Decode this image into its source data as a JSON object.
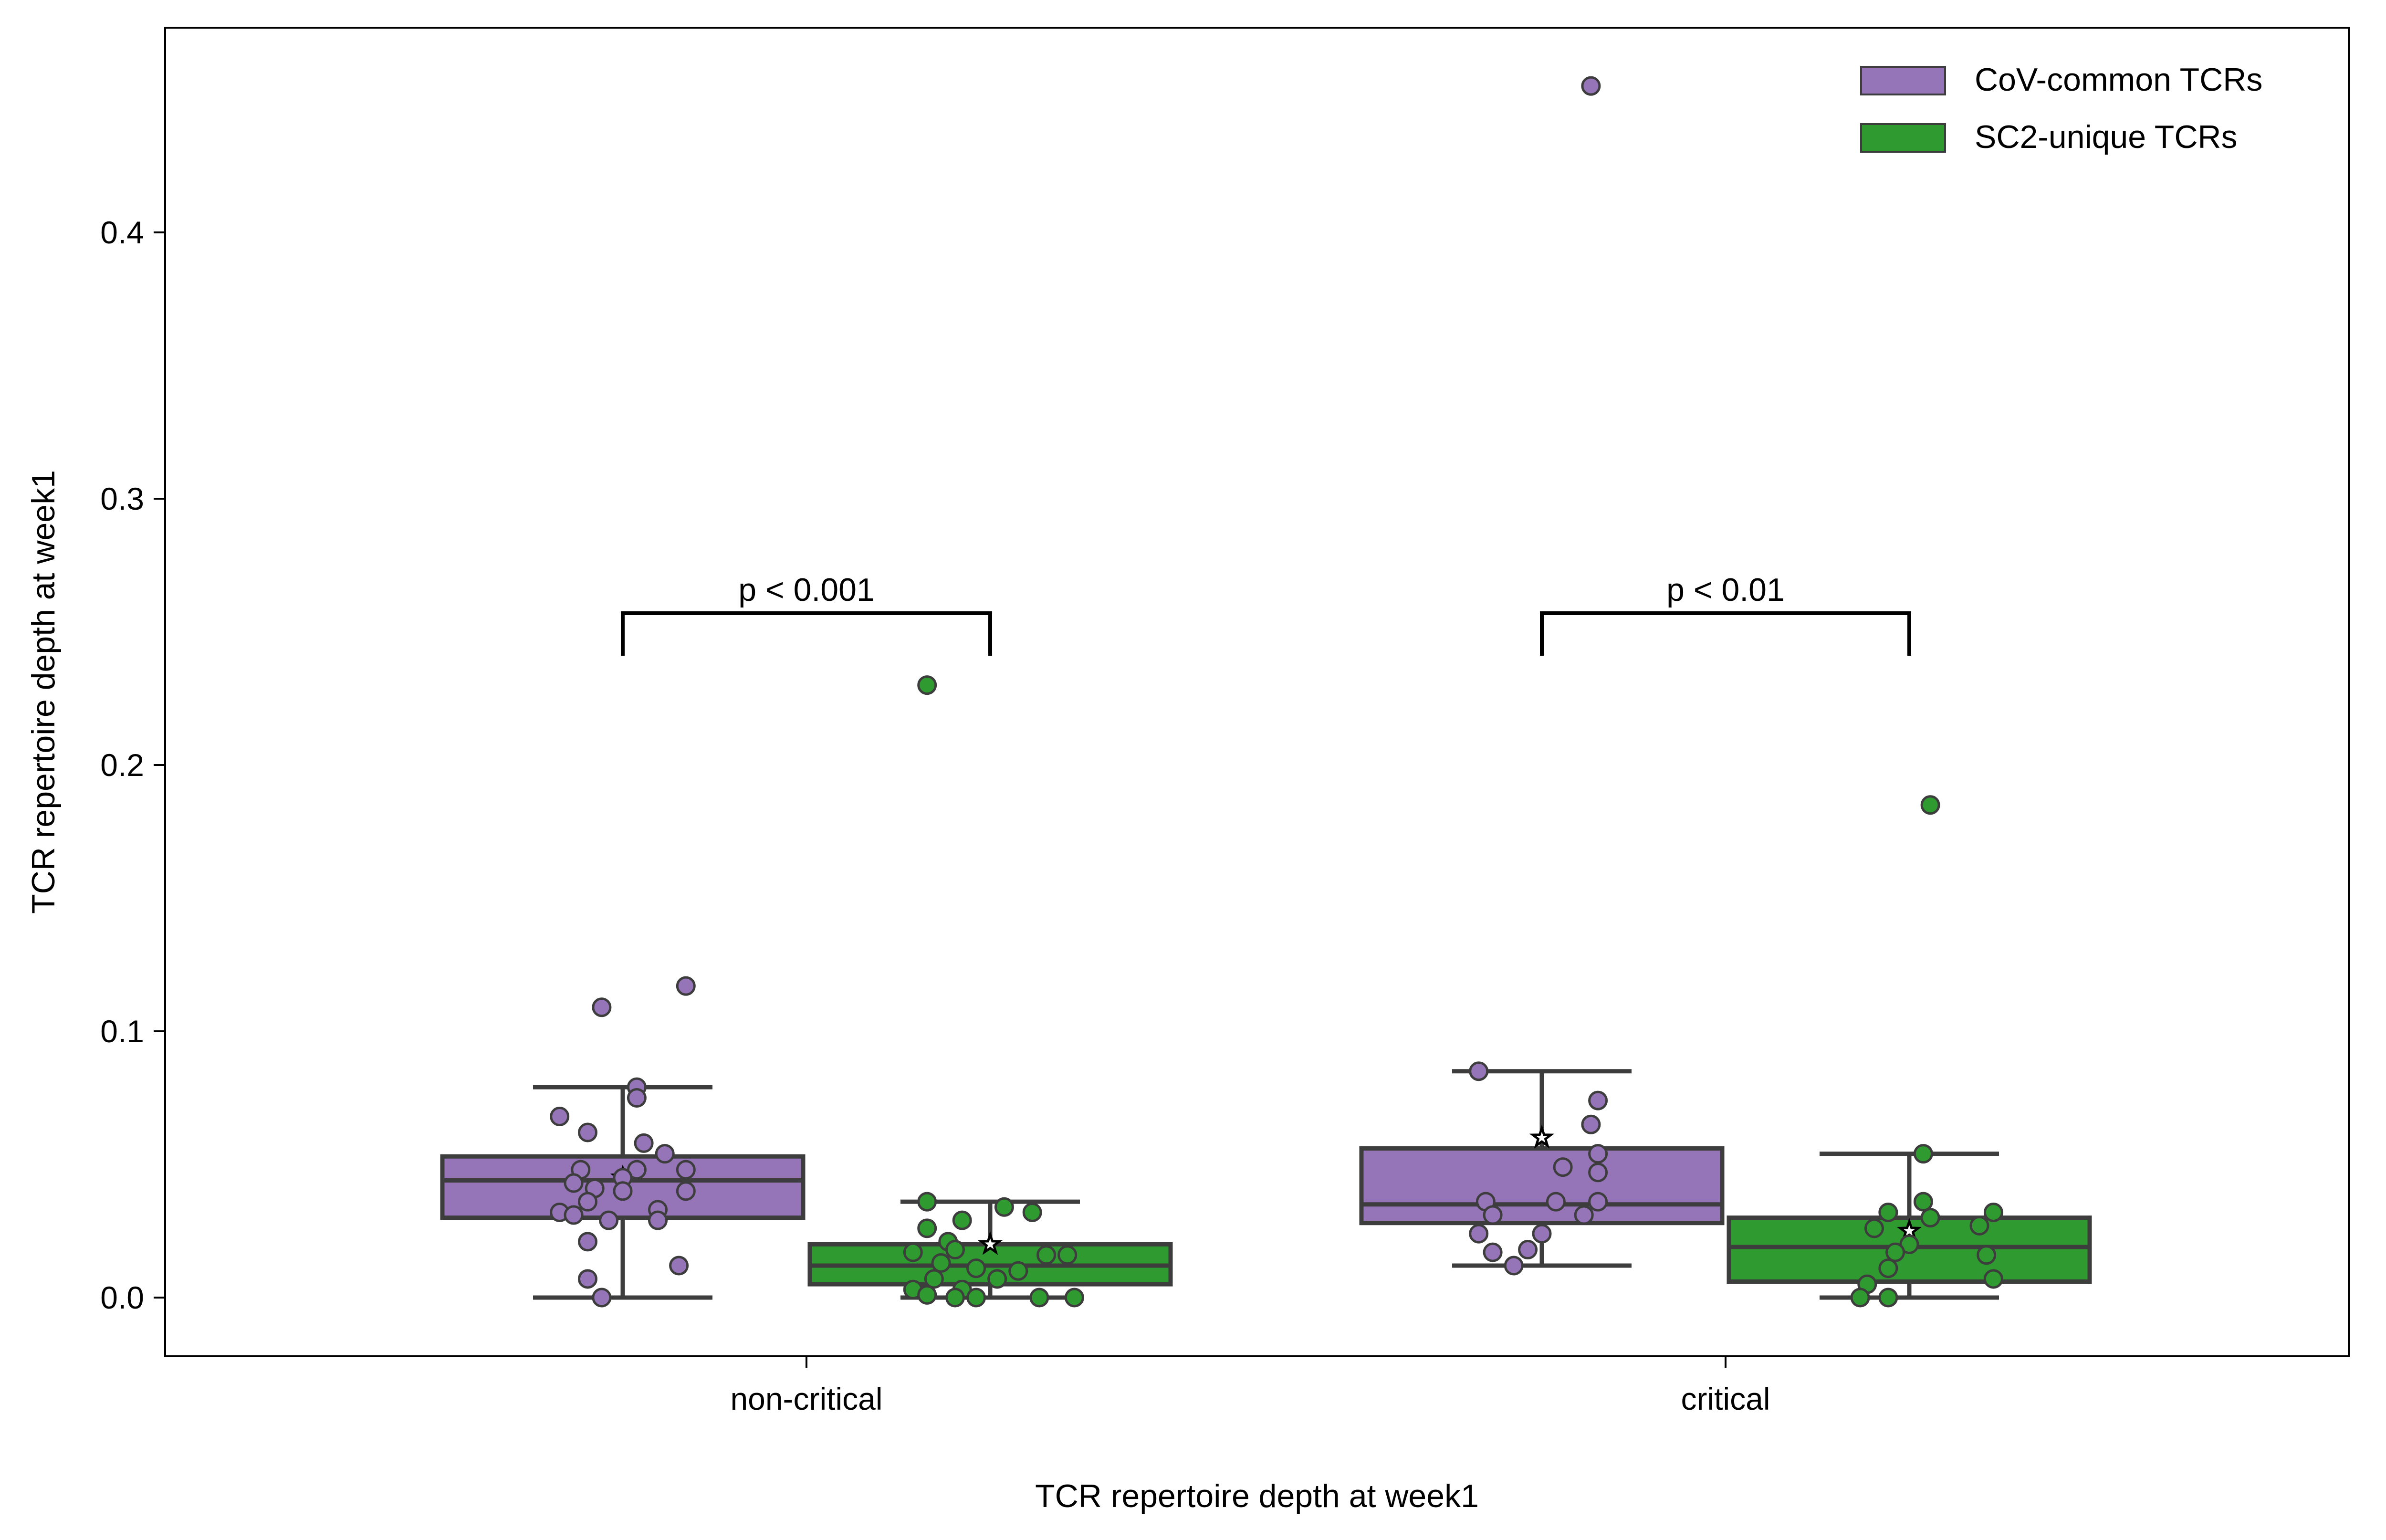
{
  "chart_data": {
    "type": "box",
    "xlabel": "TCR repertoire depth at week1",
    "ylabel": "TCR repertoire depth at week1",
    "categories": [
      "non-critical",
      "critical"
    ],
    "yticks": [
      "0.0",
      "0.1",
      "0.2",
      "0.3",
      "0.4"
    ],
    "ytick_values": [
      0.0,
      0.1,
      0.2,
      0.3,
      0.4
    ],
    "ylim": [
      -0.022,
      0.478
    ],
    "grid": false,
    "legend_position": "top-right",
    "series": [
      {
        "name": "CoV-common TCRs",
        "color": "#9575b8",
        "boxes": [
          {
            "category": "non-critical",
            "whisker_low": 0.0,
            "q1": 0.03,
            "median": 0.044,
            "q3": 0.053,
            "whisker_high": 0.079,
            "mean": 0.045,
            "outliers": [],
            "points": [
              {
                "dx": -0.03,
                "y": 0.109
              },
              {
                "dx": 0.09,
                "y": 0.117
              },
              {
                "dx": 0.02,
                "y": 0.079
              },
              {
                "dx": 0.02,
                "y": 0.075
              },
              {
                "dx": -0.09,
                "y": 0.068
              },
              {
                "dx": -0.05,
                "y": 0.062
              },
              {
                "dx": 0.03,
                "y": 0.058
              },
              {
                "dx": 0.06,
                "y": 0.054
              },
              {
                "dx": -0.06,
                "y": 0.048
              },
              {
                "dx": 0.02,
                "y": 0.048
              },
              {
                "dx": 0.09,
                "y": 0.048
              },
              {
                "dx": 0.0,
                "y": 0.045
              },
              {
                "dx": -0.07,
                "y": 0.043
              },
              {
                "dx": -0.04,
                "y": 0.041
              },
              {
                "dx": 0.0,
                "y": 0.04
              },
              {
                "dx": 0.09,
                "y": 0.04
              },
              {
                "dx": -0.05,
                "y": 0.036
              },
              {
                "dx": -0.09,
                "y": 0.032
              },
              {
                "dx": 0.05,
                "y": 0.033
              },
              {
                "dx": -0.07,
                "y": 0.031
              },
              {
                "dx": -0.02,
                "y": 0.029
              },
              {
                "dx": 0.05,
                "y": 0.029
              },
              {
                "dx": -0.05,
                "y": 0.021
              },
              {
                "dx": 0.08,
                "y": 0.012
              },
              {
                "dx": -0.05,
                "y": 0.007
              },
              {
                "dx": -0.03,
                "y": 0.0
              }
            ]
          },
          {
            "category": "critical",
            "whisker_low": 0.012,
            "q1": 0.028,
            "median": 0.035,
            "q3": 0.056,
            "whisker_high": 0.085,
            "mean": 0.06,
            "outliers": [
              0.455
            ],
            "points": [
              {
                "dx": 0.07,
                "y": 0.455
              },
              {
                "dx": -0.09,
                "y": 0.085
              },
              {
                "dx": 0.08,
                "y": 0.074
              },
              {
                "dx": 0.07,
                "y": 0.065
              },
              {
                "dx": 0.08,
                "y": 0.054
              },
              {
                "dx": 0.03,
                "y": 0.049
              },
              {
                "dx": 0.08,
                "y": 0.047
              },
              {
                "dx": -0.08,
                "y": 0.036
              },
              {
                "dx": 0.02,
                "y": 0.036
              },
              {
                "dx": 0.08,
                "y": 0.036
              },
              {
                "dx": -0.07,
                "y": 0.031
              },
              {
                "dx": 0.06,
                "y": 0.031
              },
              {
                "dx": -0.09,
                "y": 0.024
              },
              {
                "dx": 0.0,
                "y": 0.024
              },
              {
                "dx": -0.07,
                "y": 0.017
              },
              {
                "dx": -0.02,
                "y": 0.018
              },
              {
                "dx": -0.04,
                "y": 0.012
              }
            ]
          }
        ]
      },
      {
        "name": "SC2-unique TCRs",
        "color": "#2f9a2f",
        "boxes": [
          {
            "category": "non-critical",
            "whisker_low": 0.0,
            "q1": 0.005,
            "median": 0.012,
            "q3": 0.02,
            "whisker_high": 0.036,
            "mean": 0.02,
            "outliers": [
              0.23
            ],
            "points": [
              {
                "dx": -0.09,
                "y": 0.23
              },
              {
                "dx": -0.09,
                "y": 0.036
              },
              {
                "dx": 0.02,
                "y": 0.034
              },
              {
                "dx": 0.06,
                "y": 0.032
              },
              {
                "dx": -0.04,
                "y": 0.029
              },
              {
                "dx": -0.09,
                "y": 0.026
              },
              {
                "dx": -0.06,
                "y": 0.021
              },
              {
                "dx": -0.11,
                "y": 0.017
              },
              {
                "dx": -0.05,
                "y": 0.018
              },
              {
                "dx": 0.08,
                "y": 0.016
              },
              {
                "dx": 0.11,
                "y": 0.016
              },
              {
                "dx": -0.07,
                "y": 0.013
              },
              {
                "dx": -0.02,
                "y": 0.011
              },
              {
                "dx": 0.04,
                "y": 0.01
              },
              {
                "dx": -0.08,
                "y": 0.007
              },
              {
                "dx": 0.01,
                "y": 0.007
              },
              {
                "dx": -0.11,
                "y": 0.003
              },
              {
                "dx": -0.04,
                "y": 0.003
              },
              {
                "dx": -0.09,
                "y": 0.001
              },
              {
                "dx": -0.05,
                "y": 0.0
              },
              {
                "dx": -0.02,
                "y": 0.0
              },
              {
                "dx": 0.07,
                "y": 0.0
              },
              {
                "dx": 0.12,
                "y": 0.0
              }
            ]
          },
          {
            "category": "critical",
            "whisker_low": 0.0,
            "q1": 0.006,
            "median": 0.019,
            "q3": 0.03,
            "whisker_high": 0.054,
            "mean": 0.025,
            "outliers": [
              0.185
            ],
            "points": [
              {
                "dx": 0.03,
                "y": 0.185
              },
              {
                "dx": 0.02,
                "y": 0.054
              },
              {
                "dx": 0.02,
                "y": 0.036
              },
              {
                "dx": -0.03,
                "y": 0.032
              },
              {
                "dx": 0.12,
                "y": 0.032
              },
              {
                "dx": 0.03,
                "y": 0.03
              },
              {
                "dx": -0.05,
                "y": 0.026
              },
              {
                "dx": 0.1,
                "y": 0.027
              },
              {
                "dx": 0.0,
                "y": 0.02
              },
              {
                "dx": -0.02,
                "y": 0.017
              },
              {
                "dx": 0.11,
                "y": 0.016
              },
              {
                "dx": -0.03,
                "y": 0.011
              },
              {
                "dx": 0.12,
                "y": 0.007
              },
              {
                "dx": -0.06,
                "y": 0.005
              },
              {
                "dx": -0.07,
                "y": 0.0
              },
              {
                "dx": -0.03,
                "y": 0.0
              }
            ]
          }
        ]
      }
    ],
    "annotations": [
      {
        "category": "non-critical",
        "text": "p < 0.001",
        "y": 0.257,
        "tick_low": 0.241
      },
      {
        "category": "critical",
        "text": "p < 0.01",
        "y": 0.257,
        "tick_low": 0.241
      }
    ]
  }
}
